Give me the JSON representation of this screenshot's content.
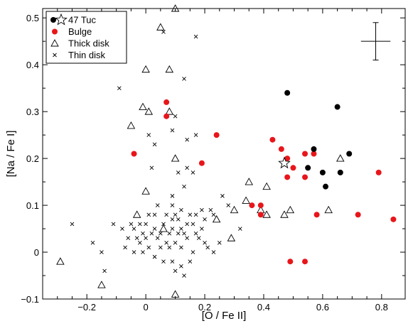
{
  "chart_data": {
    "type": "scatter",
    "title": "",
    "xlabel": "[O / Fe II]",
    "ylabel": "[Na / Fe I]",
    "xlim": [
      -0.35,
      0.88
    ],
    "ylim": [
      -0.1,
      0.52
    ],
    "xticks": [
      -0.2,
      0.0,
      0.2,
      0.4,
      0.6,
      0.8
    ],
    "yticks": [
      -0.1,
      0.0,
      0.1,
      0.2,
      0.3,
      0.4,
      0.5
    ],
    "xtick_labels": [
      "−0.2",
      "0",
      "0.2",
      "0.4",
      "0.6",
      "0.8"
    ],
    "ytick_labels": [
      "−0.1",
      "0",
      "0.1",
      "0.2",
      "0.3",
      "0.4",
      "0.5"
    ],
    "grid": false,
    "legend": "top-left",
    "error_bar": {
      "x": 0.78,
      "y": 0.45,
      "xerr": 0.05,
      "yerr": 0.04
    },
    "series": [
      {
        "name": "47 Tuc",
        "marker": "filled-circle",
        "color": "#000000",
        "mean_marker": "open-star",
        "mean": [
          0.47,
          0.19
        ],
        "points": [
          [
            0.48,
            0.34
          ],
          [
            0.57,
            0.22
          ],
          [
            0.65,
            0.31
          ],
          [
            0.69,
            0.21
          ],
          [
            0.55,
            0.18
          ],
          [
            0.6,
            0.17
          ],
          [
            0.66,
            0.17
          ],
          [
            0.61,
            0.14
          ]
        ]
      },
      {
        "name": "Bulge",
        "marker": "filled-circle",
        "color": "#e8161a",
        "points": [
          [
            0.07,
            0.32
          ],
          [
            0.07,
            0.29
          ],
          [
            0.24,
            0.25
          ],
          [
            -0.04,
            0.21
          ],
          [
            0.19,
            0.19
          ],
          [
            0.43,
            0.24
          ],
          [
            0.46,
            0.22
          ],
          [
            0.48,
            0.2
          ],
          [
            0.48,
            0.16
          ],
          [
            0.5,
            0.18
          ],
          [
            0.54,
            0.21
          ],
          [
            0.54,
            0.16
          ],
          [
            0.57,
            0.21
          ],
          [
            0.36,
            0.1
          ],
          [
            0.39,
            0.1
          ],
          [
            0.39,
            0.08
          ],
          [
            0.58,
            0.08
          ],
          [
            0.72,
            0.08
          ],
          [
            0.79,
            0.17
          ],
          [
            0.84,
            0.07
          ],
          [
            0.49,
            -0.02
          ],
          [
            0.54,
            -0.02
          ]
        ]
      },
      {
        "name": "Thick disk",
        "marker": "open-triangle",
        "color": "#000000",
        "points": [
          [
            0.1,
            0.52
          ],
          [
            0.05,
            0.48
          ],
          [
            0.0,
            0.39
          ],
          [
            0.08,
            0.39
          ],
          [
            -0.01,
            0.31
          ],
          [
            0.01,
            0.3
          ],
          [
            0.08,
            0.3
          ],
          [
            -0.05,
            0.27
          ],
          [
            0.1,
            0.2
          ],
          [
            0.0,
            0.13
          ],
          [
            -0.03,
            0.08
          ],
          [
            0.06,
            0.05
          ],
          [
            0.24,
            0.07
          ],
          [
            0.3,
            0.09
          ],
          [
            0.35,
            0.15
          ],
          [
            0.34,
            0.11
          ],
          [
            0.39,
            0.09
          ],
          [
            0.41,
            0.14
          ],
          [
            0.41,
            0.08
          ],
          [
            0.47,
            0.08
          ],
          [
            0.49,
            0.09
          ],
          [
            0.66,
            0.2
          ],
          [
            0.62,
            0.09
          ],
          [
            0.29,
            0.03
          ],
          [
            -0.29,
            -0.02
          ],
          [
            -0.15,
            -0.07
          ],
          [
            0.1,
            -0.09
          ]
        ]
      },
      {
        "name": "Thin disk",
        "marker": "cross",
        "color": "#000000",
        "points": [
          [
            0.06,
            0.47
          ],
          [
            0.17,
            0.46
          ],
          [
            0.13,
            0.37
          ],
          [
            -0.09,
            0.35
          ],
          [
            0.1,
            0.29
          ],
          [
            0.09,
            0.26
          ],
          [
            0.01,
            0.25
          ],
          [
            0.03,
            0.23
          ],
          [
            0.14,
            0.24
          ],
          [
            0.17,
            0.25
          ],
          [
            0.02,
            0.18
          ],
          [
            0.11,
            0.17
          ],
          [
            0.14,
            0.18
          ],
          [
            0.16,
            0.17
          ],
          [
            0.13,
            0.14
          ],
          [
            0.09,
            0.12
          ],
          [
            0.26,
            0.12
          ],
          [
            0.04,
            0.1
          ],
          [
            0.09,
            0.1
          ],
          [
            0.1,
            0.08
          ],
          [
            0.12,
            0.09
          ],
          [
            0.19,
            0.09
          ],
          [
            0.22,
            0.09
          ],
          [
            0.01,
            0.08
          ],
          [
            0.03,
            0.08
          ],
          [
            0.07,
            0.08
          ],
          [
            0.09,
            0.07
          ],
          [
            0.11,
            0.07
          ],
          [
            0.15,
            0.08
          ],
          [
            0.17,
            0.08
          ],
          [
            0.2,
            0.07
          ],
          [
            0.23,
            0.08
          ],
          [
            -0.05,
            0.06
          ],
          [
            -0.02,
            0.06
          ],
          [
            0.0,
            0.06
          ],
          [
            0.03,
            0.05
          ],
          [
            0.06,
            0.06
          ],
          [
            0.09,
            0.05
          ],
          [
            0.12,
            0.05
          ],
          [
            0.14,
            0.06
          ],
          [
            0.16,
            0.06
          ],
          [
            0.19,
            0.05
          ],
          [
            -0.08,
            0.05
          ],
          [
            -0.11,
            0.06
          ],
          [
            -0.04,
            0.05
          ],
          [
            -0.01,
            0.04
          ],
          [
            0.02,
            0.04
          ],
          [
            0.05,
            0.04
          ],
          [
            0.08,
            0.04
          ],
          [
            0.11,
            0.04
          ],
          [
            0.13,
            0.04
          ],
          [
            0.17,
            0.04
          ],
          [
            -0.06,
            0.03
          ],
          [
            -0.03,
            0.03
          ],
          [
            0.0,
            0.03
          ],
          [
            0.04,
            0.03
          ],
          [
            0.07,
            0.02
          ],
          [
            0.1,
            0.02
          ],
          [
            0.14,
            0.03
          ],
          [
            0.18,
            0.03
          ],
          [
            0.2,
            0.02
          ],
          [
            -0.02,
            0.02
          ],
          [
            0.01,
            0.01
          ],
          [
            0.05,
            0.01
          ],
          [
            0.08,
            0.01
          ],
          [
            0.12,
            0.01
          ],
          [
            0.16,
            0.0
          ],
          [
            0.21,
            0.01
          ],
          [
            0.23,
            0.0
          ],
          [
            -0.07,
            0.01
          ],
          [
            -0.04,
            0.0
          ],
          [
            -0.01,
            0.0
          ],
          [
            0.03,
            -0.01
          ],
          [
            0.06,
            -0.02
          ],
          [
            0.09,
            -0.02
          ],
          [
            0.12,
            -0.03
          ],
          [
            0.15,
            -0.02
          ],
          [
            0.1,
            -0.04
          ],
          [
            0.13,
            -0.05
          ],
          [
            -0.25,
            0.06
          ],
          [
            -0.18,
            0.02
          ],
          [
            -0.15,
            0.0
          ],
          [
            -0.14,
            -0.04
          ],
          [
            0.28,
            0.1
          ],
          [
            0.32,
            0.05
          ],
          [
            0.25,
            0.02
          ]
        ]
      }
    ]
  }
}
